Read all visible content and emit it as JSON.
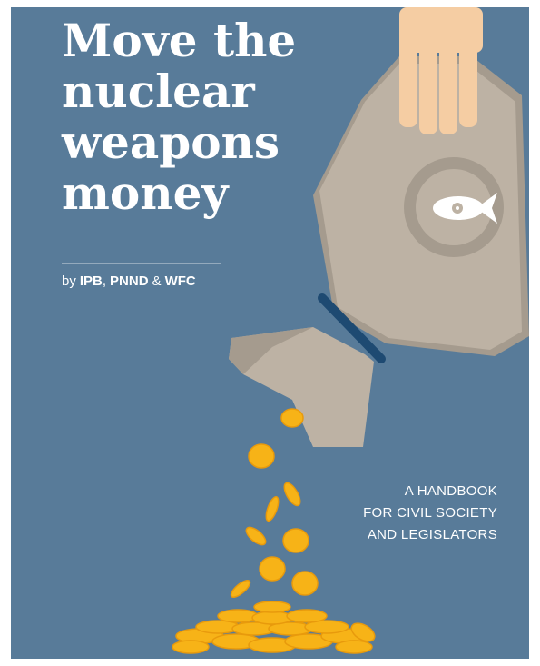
{
  "cover": {
    "title_lines": [
      "Move the",
      "nuclear",
      "weapons",
      "money"
    ],
    "byline": [
      {
        "text": "by",
        "bold": false
      },
      {
        "text": "IPB",
        "bold": true
      },
      {
        "text": ",",
        "bold": false
      },
      {
        "text": "PNND",
        "bold": true
      },
      {
        "text": "&",
        "bold": false
      },
      {
        "text": "WFC",
        "bold": true
      }
    ],
    "subtitle_lines": [
      "A HANDBOOK",
      "FOR CIVIL SOCIETY",
      "AND LEGISLATORS"
    ]
  }
}
